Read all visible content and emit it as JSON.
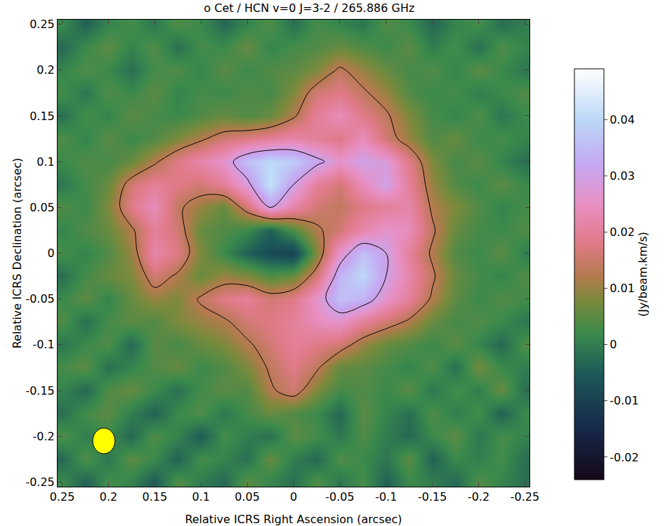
{
  "chart_data": {
    "type": "heatmap",
    "title": "o Cet / HCN v=0 J=3-2 / 265.886 GHz",
    "x_label": "Relative ICRS Right Ascension (arcsec)",
    "y_label": "Relative ICRS Declination (arcsec)",
    "colorbar_title": "(Jy/beam.km/s)",
    "xlim": [
      0.255,
      -0.255
    ],
    "ylim": [
      -0.255,
      0.255
    ],
    "xticks": [
      0.25,
      0.2,
      0.15,
      0.1,
      0.05,
      0,
      -0.05,
      -0.1,
      -0.15,
      -0.2,
      -0.25
    ],
    "yticks": [
      -0.25,
      -0.2,
      -0.15,
      -0.1,
      -0.05,
      0,
      0.05,
      0.1,
      0.15,
      0.2,
      0.25
    ],
    "zlim": [
      -0.024,
      0.049
    ],
    "zticks": [
      -0.02,
      -0.01,
      0,
      0.01,
      0.02,
      0.03,
      0.04
    ],
    "contour_levels": [
      0.013,
      0.03
    ],
    "beam": {
      "x": 0.205,
      "y": -0.205,
      "width": 0.024,
      "height": 0.028,
      "color": "#ffff00"
    },
    "x": [
      0.25,
      0.225,
      0.2,
      0.175,
      0.15,
      0.125,
      0.1,
      0.075,
      0.05,
      0.025,
      0,
      -0.025,
      -0.05,
      -0.075,
      -0.1,
      -0.125,
      -0.15,
      -0.175,
      -0.2,
      -0.225,
      -0.25
    ],
    "y": [
      -0.25,
      -0.225,
      -0.2,
      -0.175,
      -0.15,
      -0.125,
      -0.1,
      -0.075,
      -0.05,
      -0.025,
      0,
      0.025,
      0.05,
      0.075,
      0.1,
      0.125,
      0.15,
      0.175,
      0.2,
      0.225,
      0.25
    ],
    "cells": [
      [
        0.002,
        -0.004,
        0.003,
        0.001,
        -0.005,
        0.004,
        0.0,
        -0.003,
        0.005,
        0.001,
        -0.002,
        0.004,
        -0.001,
        0.003,
        -0.004,
        0.002,
        0.0,
        -0.003,
        0.004,
        0.001,
        -0.002
      ],
      [
        -0.003,
        0.004,
        -0.001,
        0.005,
        0.002,
        -0.004,
        0.003,
        0.001,
        -0.002,
        0.006,
        0.0,
        -0.003,
        0.004,
        0.002,
        -0.001,
        0.005,
        -0.004,
        0.002,
        0.0,
        0.003,
        -0.002
      ],
      [
        0.004,
        0.0,
        0.002,
        -0.003,
        0.004,
        0.001,
        -0.005,
        0.003,
        0.0,
        -0.002,
        0.005,
        0.003,
        -0.001,
        0.004,
        0.0,
        -0.003,
        0.002,
        0.005,
        -0.001,
        0.003,
        0.001
      ],
      [
        -0.002,
        0.003,
        0.005,
        0.0,
        -0.004,
        0.002,
        0.004,
        -0.001,
        0.003,
        0.006,
        0.004,
        0.002,
        -0.003,
        0.005,
        0.001,
        -0.002,
        0.004,
        0.0,
        0.003,
        -0.004,
        0.002
      ],
      [
        0.001,
        -0.003,
        0.004,
        0.006,
        0.002,
        -0.002,
        0.003,
        0.005,
        0.004,
        0.012,
        0.016,
        0.008,
        0.003,
        0.004,
        0.002,
        0.005,
        -0.001,
        0.003,
        0.0,
        0.006,
        -0.002
      ],
      [
        0.003,
        0.005,
        -0.002,
        0.001,
        0.004,
        0.006,
        0.002,
        0.004,
        0.008,
        0.014,
        0.018,
        0.014,
        0.006,
        0.005,
        0.003,
        0.001,
        0.004,
        -0.002,
        0.007,
        0.002,
        0.0
      ],
      [
        -0.001,
        0.002,
        0.004,
        -0.003,
        0.005,
        0.003,
        0.006,
        0.008,
        0.012,
        0.016,
        0.02,
        0.018,
        0.016,
        0.01,
        0.006,
        0.004,
        0.002,
        0.005,
        0.001,
        -0.003,
        0.004
      ],
      [
        0.004,
        -0.002,
        0.003,
        0.005,
        0.004,
        0.008,
        0.01,
        0.012,
        0.016,
        0.018,
        0.02,
        0.024,
        0.026,
        0.02,
        0.016,
        0.012,
        0.006,
        0.003,
        0.004,
        0.002,
        -0.001
      ],
      [
        0.002,
        0.005,
        0.001,
        0.006,
        0.01,
        0.008,
        0.014,
        0.018,
        0.02,
        0.016,
        0.018,
        0.026,
        0.036,
        0.034,
        0.026,
        0.02,
        0.012,
        0.005,
        0.002,
        0.004,
        0.003
      ],
      [
        -0.002,
        0.003,
        0.006,
        0.008,
        0.016,
        0.012,
        0.006,
        0.01,
        0.008,
        0.004,
        0.006,
        0.016,
        0.034,
        0.04,
        0.03,
        0.022,
        0.014,
        0.006,
        0.003,
        0.001,
        0.004
      ],
      [
        0.003,
        0.001,
        0.004,
        0.01,
        0.022,
        0.018,
        0.008,
        0.002,
        -0.004,
        -0.008,
        -0.01,
        0.008,
        0.026,
        0.036,
        0.03,
        0.02,
        0.012,
        0.004,
        0.002,
        0.005,
        0.0
      ],
      [
        0.001,
        0.004,
        0.006,
        0.012,
        0.02,
        0.016,
        0.006,
        0.004,
        0.002,
        -0.004,
        0.004,
        0.012,
        0.016,
        0.022,
        0.026,
        0.024,
        0.014,
        0.006,
        0.003,
        0.002,
        0.004
      ],
      [
        0.004,
        0.002,
        0.008,
        0.018,
        0.024,
        0.014,
        0.01,
        0.006,
        0.016,
        0.03,
        0.022,
        0.016,
        0.014,
        0.018,
        0.02,
        0.022,
        0.012,
        0.008,
        0.004,
        0.001,
        0.003
      ],
      [
        -0.001,
        0.003,
        0.006,
        0.016,
        0.02,
        0.018,
        0.016,
        0.02,
        0.028,
        0.042,
        0.03,
        0.02,
        0.016,
        0.024,
        0.03,
        0.02,
        0.01,
        0.004,
        0.002,
        0.005,
        0.002
      ],
      [
        0.002,
        0.004,
        0.003,
        0.006,
        0.012,
        0.018,
        0.022,
        0.026,
        0.036,
        0.04,
        0.038,
        0.032,
        0.026,
        0.03,
        0.028,
        0.018,
        0.008,
        0.003,
        0.005,
        0.001,
        -0.002
      ],
      [
        0.004,
        0.001,
        0.005,
        0.002,
        0.004,
        0.008,
        0.012,
        0.016,
        0.018,
        0.02,
        0.022,
        0.02,
        0.018,
        0.024,
        0.016,
        0.01,
        0.004,
        0.006,
        0.002,
        0.003,
        0.001
      ],
      [
        -0.002,
        0.003,
        0.001,
        0.005,
        0.003,
        0.002,
        0.004,
        0.006,
        0.004,
        0.006,
        0.012,
        0.02,
        0.024,
        0.018,
        0.014,
        0.008,
        0.003,
        0.001,
        0.004,
        -0.001,
        0.002
      ],
      [
        0.003,
        -0.001,
        0.004,
        0.002,
        0.005,
        0.001,
        0.003,
        0.002,
        0.004,
        0.003,
        0.008,
        0.016,
        0.018,
        0.014,
        0.01,
        0.004,
        0.002,
        0.003,
        0.0,
        0.002,
        0.004
      ],
      [
        0.001,
        0.004,
        0.002,
        -0.002,
        0.003,
        0.004,
        0.001,
        0.005,
        0.002,
        0.004,
        0.005,
        0.008,
        0.014,
        0.01,
        0.006,
        0.003,
        0.004,
        0.001,
        0.005,
        0.002,
        -0.001
      ],
      [
        -0.003,
        0.002,
        0.005,
        0.001,
        0.004,
        -0.002,
        0.003,
        0.002,
        0.006,
        0.001,
        0.003,
        0.004,
        0.006,
        0.004,
        0.002,
        0.005,
        0.0,
        0.003,
        -0.002,
        0.004,
        0.001
      ],
      [
        0.002,
        -0.004,
        0.001,
        0.003,
        -0.001,
        0.004,
        0.002,
        -0.003,
        0.001,
        0.004,
        -0.002,
        0.003,
        0.001,
        -0.001,
        0.004,
        0.002,
        -0.003,
        0.001,
        0.003,
        -0.002,
        0.0
      ]
    ]
  }
}
